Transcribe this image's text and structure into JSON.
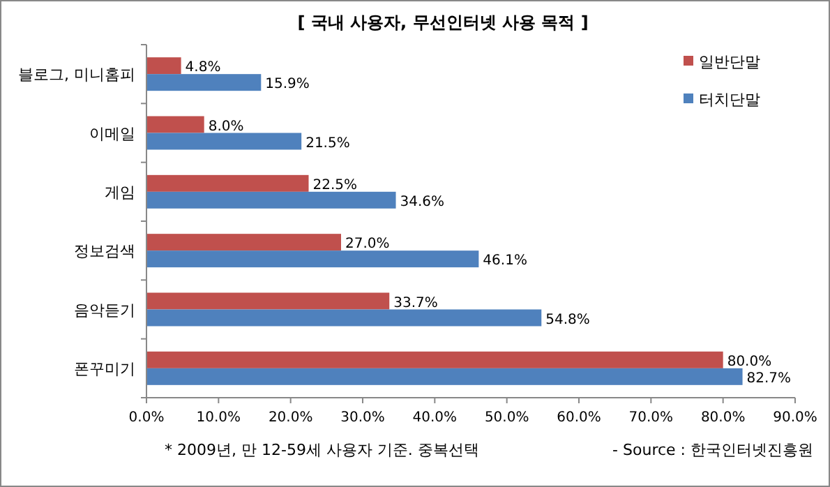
{
  "chart_data": {
    "type": "bar",
    "orientation": "horizontal",
    "title": "[ 국내 사용자, 무선인터넷 사용 목적 ]",
    "categories": [
      "블로그, 미니홈피",
      "이메일",
      "게임",
      "정보검색",
      "음악듣기",
      "폰꾸미기"
    ],
    "series": [
      {
        "name": "일반단말",
        "color": "#c0504d",
        "values": [
          4.8,
          8.0,
          22.5,
          27.0,
          33.7,
          80.0
        ],
        "value_labels": [
          "4.8%",
          "8.0%",
          "22.5%",
          "27.0%",
          "33.7%",
          "80.0%"
        ]
      },
      {
        "name": "터치단말",
        "color": "#4f81bd",
        "values": [
          15.9,
          21.5,
          34.6,
          46.1,
          54.8,
          82.7
        ],
        "value_labels": [
          "15.9%",
          "21.5%",
          "34.6%",
          "46.1%",
          "54.8%",
          "82.7%"
        ]
      }
    ],
    "xlim": [
      0,
      90
    ],
    "xticks": [
      {
        "value": 0,
        "label": "0.0%"
      },
      {
        "value": 10,
        "label": "10.0%"
      },
      {
        "value": 20,
        "label": "20.0%"
      },
      {
        "value": 30,
        "label": "30.0%"
      },
      {
        "value": 40,
        "label": "40.0%"
      },
      {
        "value": 50,
        "label": "50.0%"
      },
      {
        "value": 60,
        "label": "60.0%"
      },
      {
        "value": 70,
        "label": "70.0%"
      },
      {
        "value": 80,
        "label": "80.0%"
      },
      {
        "value": 90,
        "label": "90.0%"
      }
    ],
    "legend": "top right",
    "grid": false,
    "annotations": [
      "* 2009년, 만 12-59세 사용자 기준. 중복선택",
      "- Source : 한국인터넷진흥원"
    ]
  }
}
